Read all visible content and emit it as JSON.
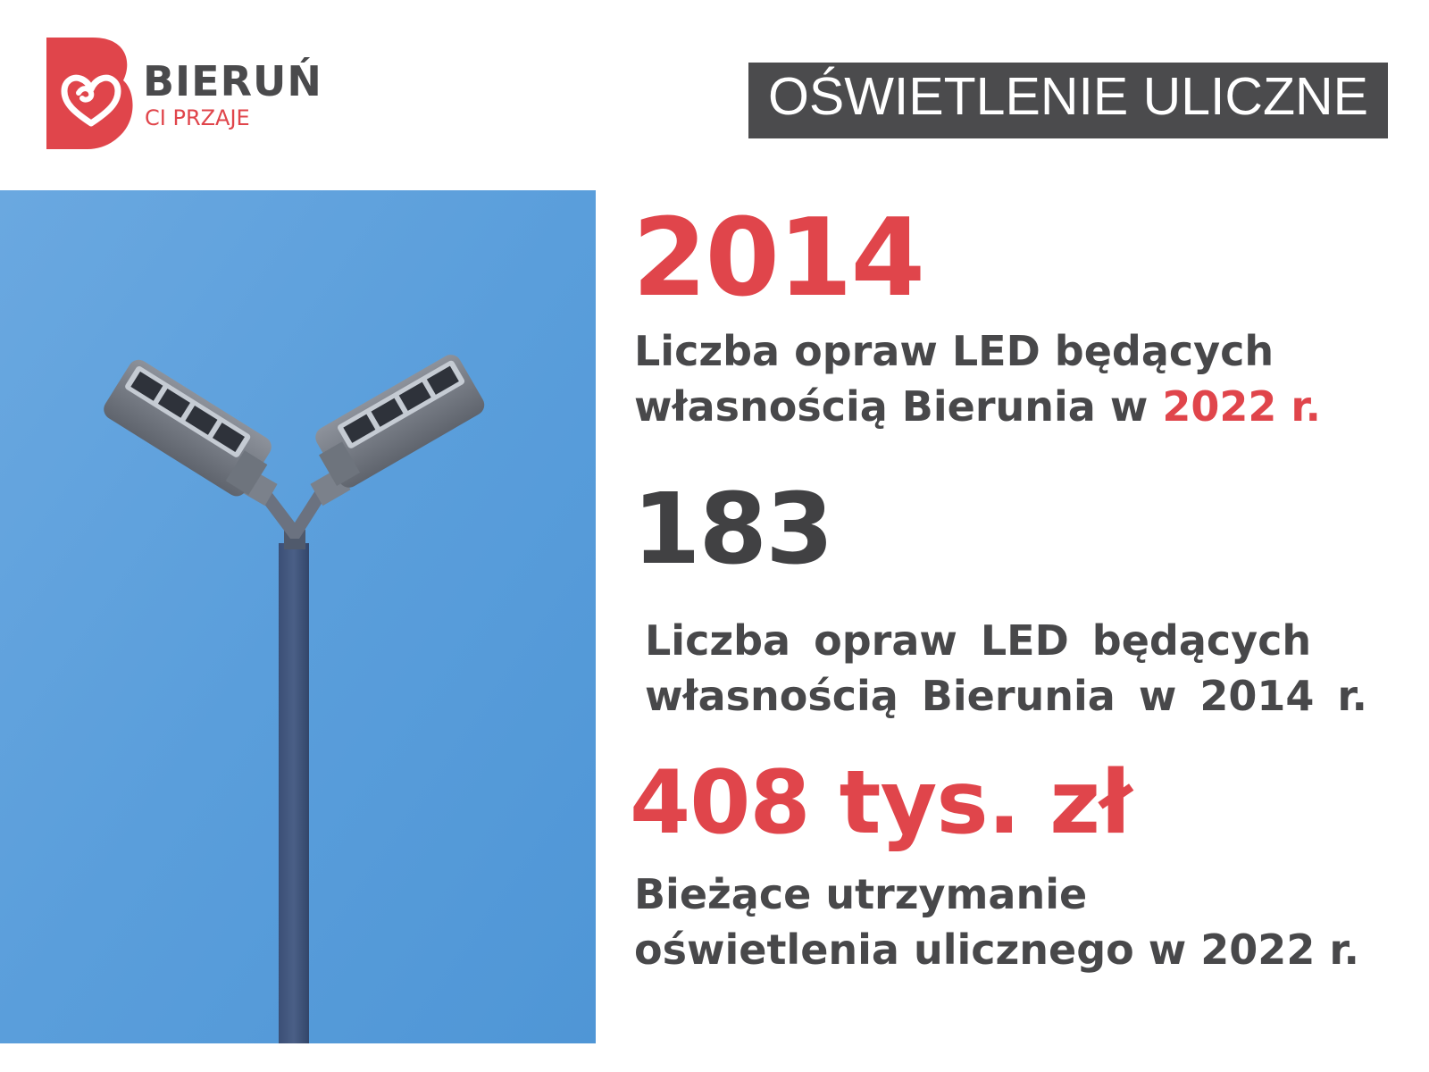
{
  "brand": {
    "name": "BIERUŃ",
    "tagline": "CI PRZAJE"
  },
  "header": {
    "title": "OŚWIETLENIE ULICZNE"
  },
  "photo": {
    "subject": "street-lamp-icon"
  },
  "stats": [
    {
      "value": "2014",
      "line1": "Liczba opraw LED będących",
      "line2": "własnością Bierunia w ",
      "line2_highlight": "2022 r."
    },
    {
      "value": "183",
      "line1": "Liczba opraw LED będących",
      "line2": "własnością Bierunia w 2014 r."
    },
    {
      "value": "408 tys. zł",
      "line1": "Bieżące utrzymanie",
      "line2": "oświetlenia ulicznego w 2022 r."
    }
  ],
  "colors": {
    "accent": "#e0454b",
    "dark": "#4b4b4d",
    "sky": "#5a9fdb"
  }
}
